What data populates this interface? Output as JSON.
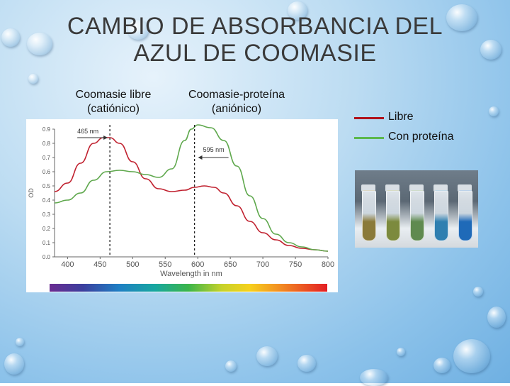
{
  "slide": {
    "title_line1": "CAMBIO DE ABSORBANCIA  DEL",
    "title_line2": "AZUL DE COOMASIE",
    "label_left_line1": "Coomasie libre",
    "label_left_line2": "(catiónico)",
    "label_right_line1": "Coomasie-proteína",
    "label_right_line2": "(aniónico)"
  },
  "legend": [
    {
      "label": "Libre",
      "color": "#b0121b"
    },
    {
      "label": "Con proteína",
      "color": "#5cb84d"
    }
  ],
  "tube_colors": [
    "#8a7a3a",
    "#7c8a3e",
    "#5f8a4f",
    "#2f7fb0",
    "#1f6ab8"
  ],
  "chart_data": {
    "type": "line",
    "ylabel": "OD",
    "xlabel": "Wavelength in nm",
    "xlim": [
      380,
      800
    ],
    "ylim": [
      0,
      0.9
    ],
    "xticks": [
      400,
      450,
      500,
      550,
      600,
      650,
      700,
      750,
      800
    ],
    "yticks": [
      "0.0",
      "0.1",
      "0.2",
      "0.3",
      "0.4",
      "0.5",
      "0.6",
      "0.7",
      "0.8",
      "0.9"
    ],
    "series": [
      {
        "color": "#c0202e",
        "x": [
          380,
          400,
          420,
          440,
          455,
          465,
          480,
          500,
          520,
          540,
          560,
          580,
          595,
          610,
          625,
          640,
          660,
          680,
          700,
          720,
          740,
          760,
          780,
          800
        ],
        "y": [
          0.46,
          0.52,
          0.66,
          0.8,
          0.84,
          0.84,
          0.8,
          0.67,
          0.55,
          0.48,
          0.46,
          0.47,
          0.49,
          0.5,
          0.49,
          0.45,
          0.36,
          0.25,
          0.17,
          0.12,
          0.08,
          0.06,
          0.05,
          0.04
        ]
      },
      {
        "color": "#5fa84d",
        "x": [
          380,
          400,
          420,
          440,
          460,
          480,
          500,
          520,
          540,
          560,
          580,
          590,
          600,
          620,
          640,
          660,
          680,
          700,
          720,
          740,
          760,
          780,
          800
        ],
        "y": [
          0.38,
          0.4,
          0.45,
          0.54,
          0.6,
          0.61,
          0.6,
          0.58,
          0.56,
          0.62,
          0.82,
          0.9,
          0.93,
          0.91,
          0.82,
          0.64,
          0.43,
          0.27,
          0.16,
          0.1,
          0.07,
          0.05,
          0.04
        ]
      }
    ],
    "annotations": [
      {
        "text": "465 nm",
        "x": 465
      },
      {
        "text": "595 nm",
        "x": 595
      }
    ]
  }
}
